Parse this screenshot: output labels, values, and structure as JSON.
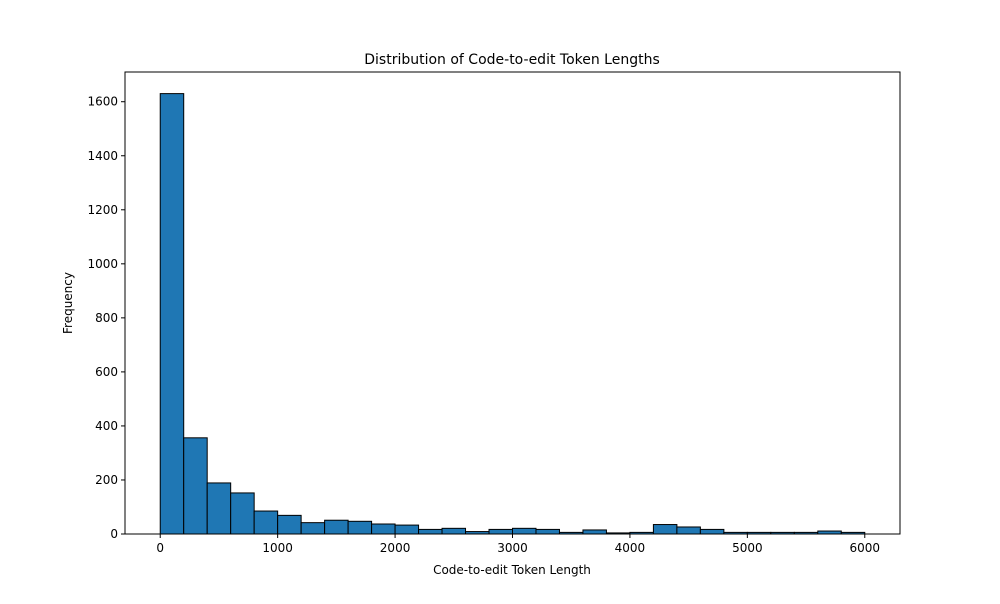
{
  "chart_data": {
    "type": "bar",
    "title": "Distribution of Code-to-edit Token Lengths",
    "xlabel": "Code-to-edit Token Length",
    "ylabel": "Frequency",
    "bin_edges": [
      0,
      200,
      400,
      600,
      800,
      1000,
      1200,
      1400,
      1600,
      1800,
      2000,
      2200,
      2400,
      2600,
      2800,
      3000,
      3200,
      3400,
      3600,
      3800,
      4000,
      4200,
      4400,
      4600,
      4800,
      5000,
      5200,
      5400,
      5600,
      5800,
      6000
    ],
    "values": [
      1630,
      356,
      189,
      152,
      85,
      69,
      42,
      51,
      47,
      37,
      33,
      17,
      21,
      9,
      17,
      21,
      17,
      6,
      15,
      4,
      6,
      35,
      26,
      17,
      6,
      6,
      6,
      6,
      11,
      6
    ],
    "xlim": [
      -300,
      6300
    ],
    "ylim": [
      0,
      1710
    ],
    "xticks": [
      0,
      1000,
      2000,
      3000,
      4000,
      5000,
      6000
    ],
    "yticks": [
      0,
      200,
      400,
      600,
      800,
      1000,
      1200,
      1400,
      1600
    ],
    "grid": false,
    "bar_color": "#1f77b4",
    "edge_color": "#000000"
  }
}
